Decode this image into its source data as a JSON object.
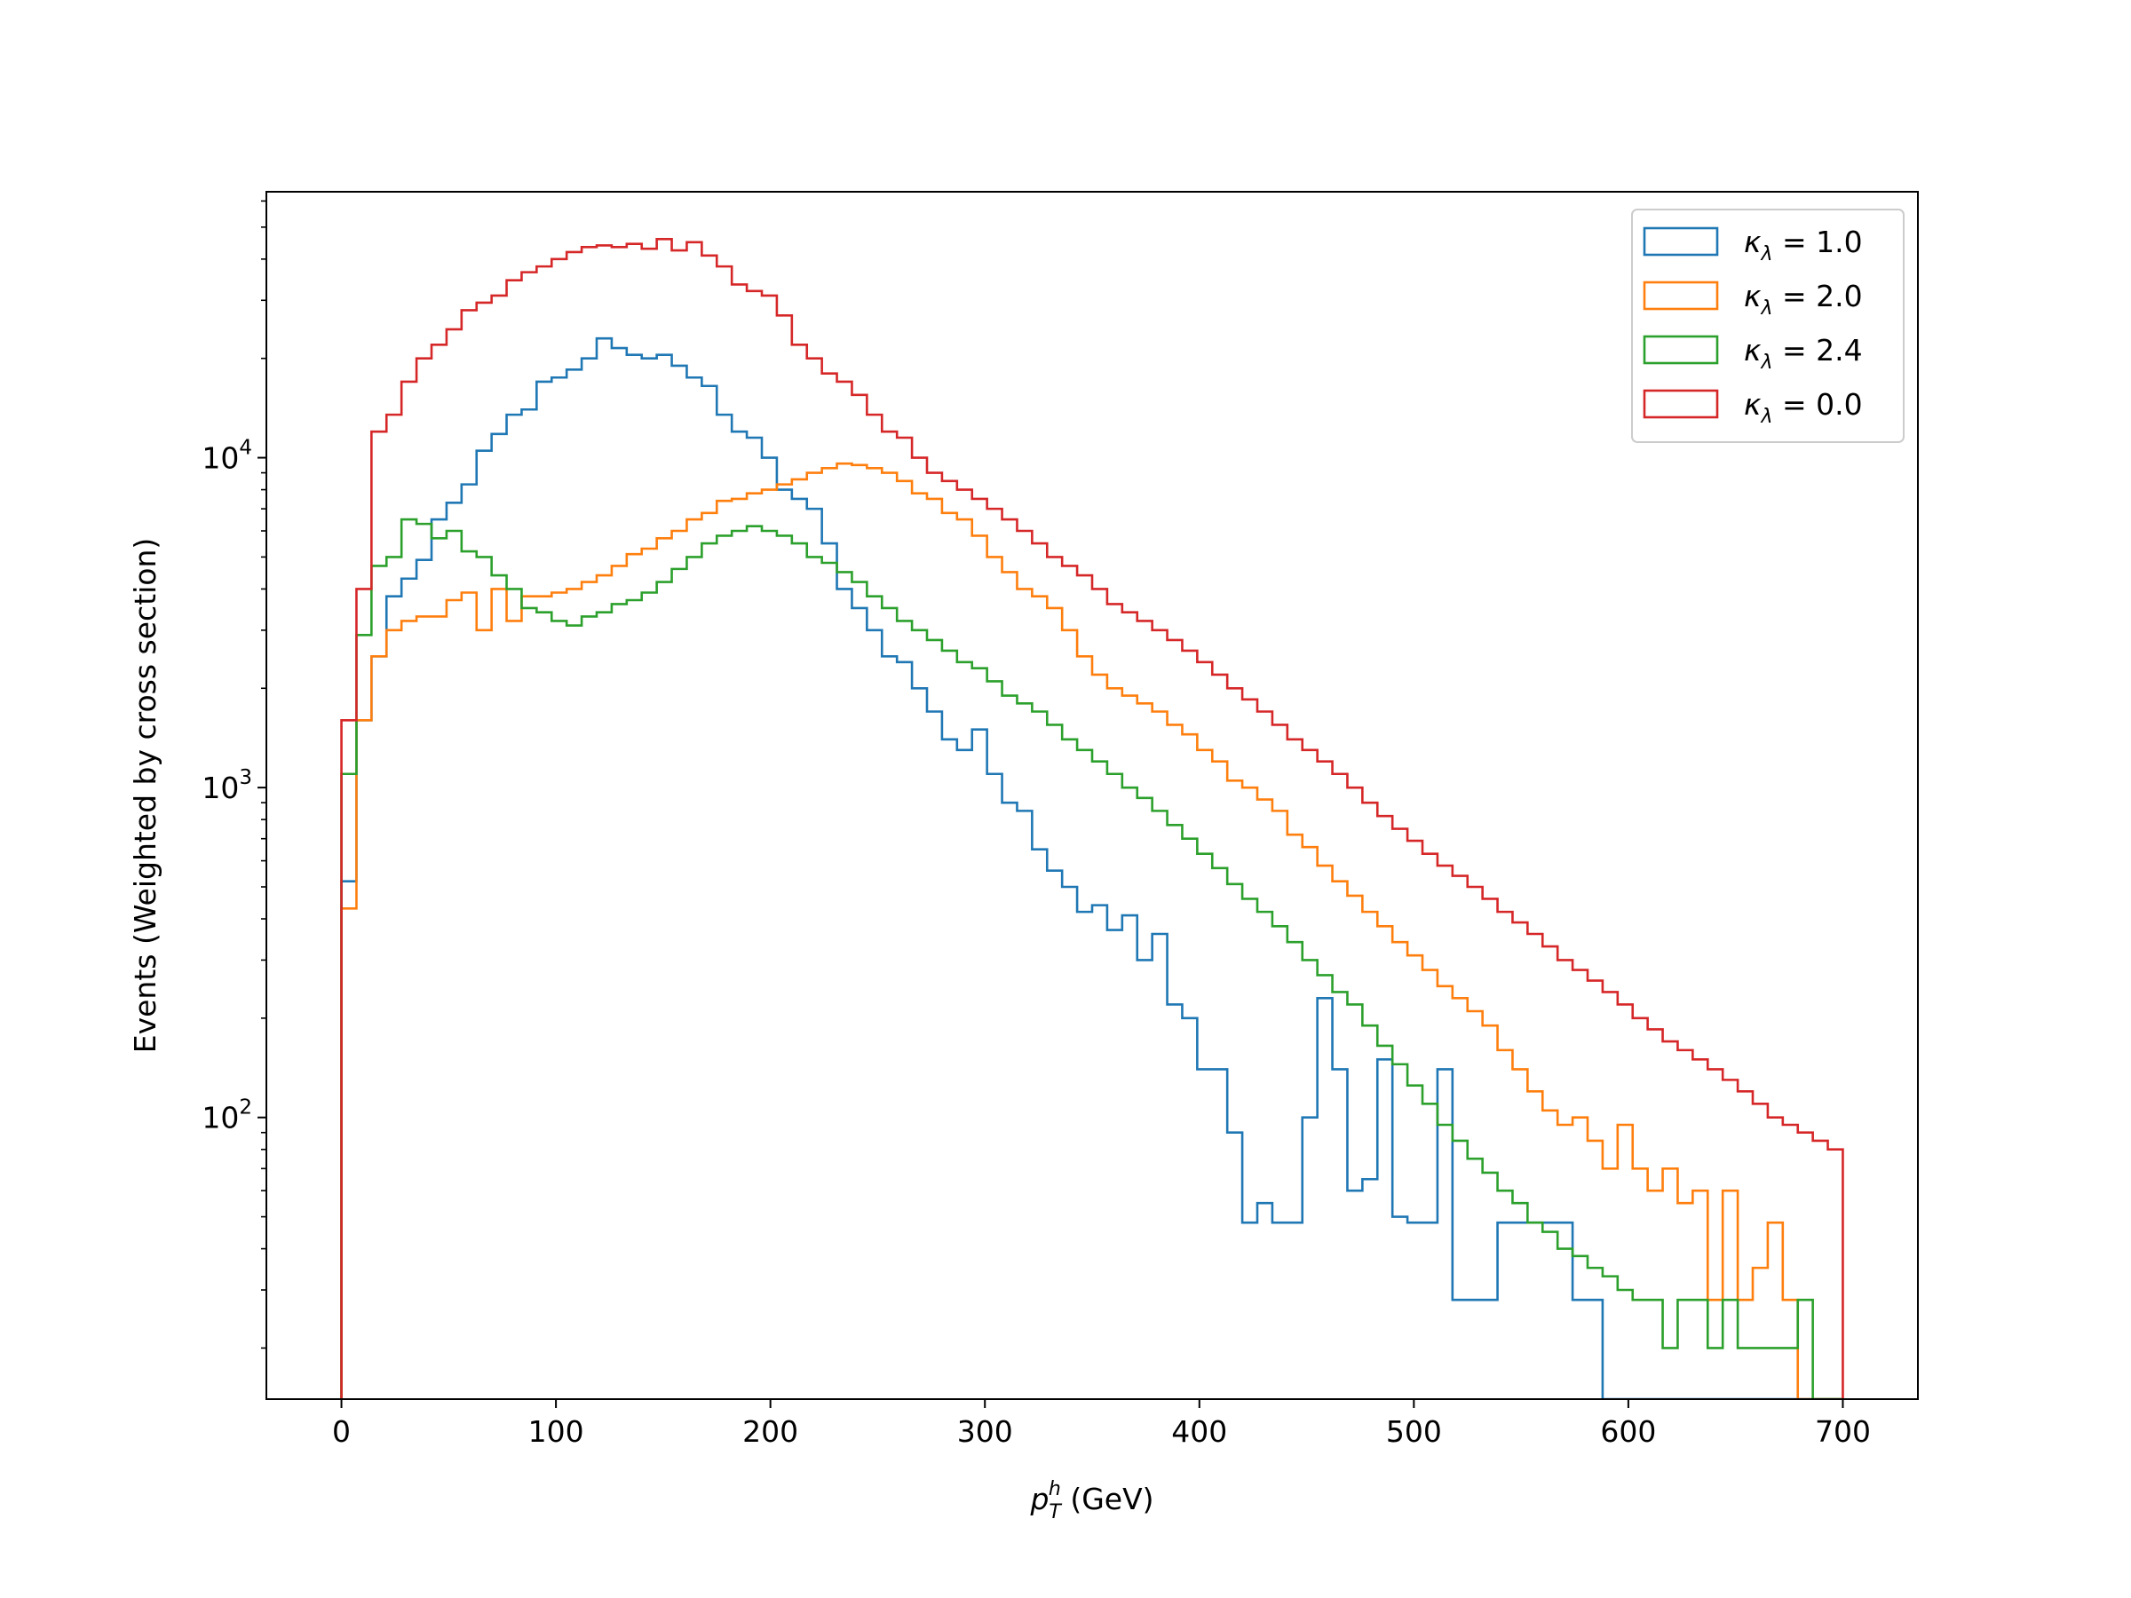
{
  "chart_data": {
    "type": "histogram",
    "xlabel": "p_T^h (GeV)",
    "xlabel_parts": {
      "base": "p",
      "sub": "T",
      "sup": "h",
      "rest": " (GeV)"
    },
    "ylabel": "Events (Weighted by cross section)",
    "yscale": "log",
    "xlim": [
      -35,
      735
    ],
    "ylim": [
      14,
      64000
    ],
    "bin_width": 7,
    "x_ticks": [
      0,
      100,
      200,
      300,
      400,
      500,
      600,
      700
    ],
    "x_tick_labels": [
      "0",
      "100",
      "200",
      "300",
      "400",
      "500",
      "600",
      "700"
    ],
    "y_ticks": [
      100,
      1000,
      10000
    ],
    "y_tick_labels": [
      {
        "base": "10",
        "exp": "2"
      },
      {
        "base": "10",
        "exp": "3"
      },
      {
        "base": "10",
        "exp": "4"
      }
    ],
    "legend_position": "upper right",
    "grid": false,
    "series": [
      {
        "name": "κ_λ = 1.0",
        "legend": {
          "kappa": "κ",
          "sub": "λ",
          "rest": " = 1.0"
        },
        "color": "#1f77b4",
        "values": [
          520,
          1600,
          2500,
          3800,
          4300,
          4900,
          6500,
          7300,
          8300,
          10500,
          11800,
          13500,
          14000,
          17000,
          17500,
          18500,
          20000,
          23000,
          21500,
          20500,
          20000,
          20500,
          19000,
          17500,
          16500,
          13500,
          12000,
          11500,
          10000,
          8000,
          7500,
          7000,
          5500,
          4000,
          3500,
          3000,
          2500,
          2400,
          2000,
          1700,
          1400,
          1300,
          1500,
          1100,
          900,
          850,
          650,
          560,
          500,
          420,
          440,
          370,
          410,
          300,
          360,
          220,
          200,
          140,
          140,
          90,
          48,
          55,
          48,
          48,
          100,
          230,
          140,
          60,
          65,
          150,
          50,
          48,
          48,
          140,
          28,
          28,
          28,
          48,
          48,
          48,
          48,
          48,
          28,
          28,
          14,
          14,
          14,
          14,
          14,
          14,
          14,
          14,
          14,
          14,
          14,
          14,
          14,
          14,
          14,
          14
        ]
      },
      {
        "name": "κ_λ = 2.0",
        "legend": {
          "kappa": "κ",
          "sub": "λ",
          "rest": " = 2.0"
        },
        "color": "#ff7f0e",
        "values": [
          430,
          1600,
          2500,
          3000,
          3200,
          3300,
          3300,
          3700,
          3900,
          3000,
          4000,
          3200,
          3800,
          3800,
          3900,
          4000,
          4200,
          4400,
          4700,
          5100,
          5300,
          5700,
          6000,
          6500,
          6800,
          7400,
          7500,
          7800,
          8000,
          8300,
          8600,
          9000,
          9300,
          9600,
          9500,
          9300,
          9000,
          8500,
          7800,
          7500,
          6800,
          6500,
          5800,
          5000,
          4500,
          4000,
          3800,
          3500,
          3000,
          2500,
          2200,
          2000,
          1900,
          1800,
          1700,
          1550,
          1450,
          1300,
          1200,
          1050,
          1000,
          920,
          850,
          720,
          660,
          580,
          520,
          470,
          420,
          380,
          340,
          310,
          280,
          250,
          230,
          210,
          190,
          160,
          140,
          120,
          105,
          95,
          100,
          85,
          70,
          95,
          70,
          60,
          70,
          55,
          60,
          28,
          60,
          28,
          35,
          48,
          28,
          14,
          14,
          14
        ]
      },
      {
        "name": "κ_λ = 2.4",
        "legend": {
          "kappa": "κ",
          "sub": "λ",
          "rest": " = 2.4"
        },
        "color": "#2ca02c",
        "values": [
          1100,
          2900,
          4700,
          5000,
          6500,
          6300,
          5700,
          6000,
          5200,
          5000,
          4400,
          4000,
          3500,
          3400,
          3200,
          3100,
          3300,
          3400,
          3600,
          3700,
          3900,
          4200,
          4600,
          5000,
          5500,
          5800,
          6000,
          6200,
          6000,
          5800,
          5500,
          5000,
          4800,
          4500,
          4200,
          3800,
          3500,
          3200,
          3000,
          2800,
          2600,
          2400,
          2300,
          2100,
          1900,
          1800,
          1700,
          1550,
          1400,
          1300,
          1200,
          1100,
          1000,
          930,
          850,
          770,
          700,
          630,
          570,
          510,
          460,
          420,
          380,
          340,
          300,
          270,
          240,
          220,
          190,
          165,
          145,
          125,
          110,
          95,
          85,
          75,
          68,
          60,
          55,
          48,
          45,
          40,
          38,
          35,
          33,
          30,
          28,
          28,
          20,
          28,
          28,
          20,
          28,
          20,
          20,
          20,
          20,
          28,
          14,
          14
        ]
      },
      {
        "name": "κ_λ = 0.0",
        "legend": {
          "kappa": "κ",
          "sub": "λ",
          "rest": " = 0.0"
        },
        "color": "#d62728",
        "values": [
          1600,
          4000,
          12000,
          13500,
          17000,
          20000,
          22000,
          24500,
          28000,
          29500,
          31000,
          34500,
          36500,
          38000,
          40000,
          42000,
          43500,
          44000,
          43500,
          44500,
          43000,
          46000,
          42500,
          45000,
          41000,
          38000,
          33500,
          32000,
          31000,
          27000,
          22000,
          20000,
          18000,
          17000,
          15500,
          13500,
          12000,
          11500,
          10000,
          9000,
          8500,
          8000,
          7500,
          7000,
          6500,
          6000,
          5500,
          5000,
          4700,
          4400,
          4000,
          3600,
          3400,
          3200,
          3000,
          2800,
          2600,
          2400,
          2200,
          2000,
          1850,
          1700,
          1550,
          1400,
          1300,
          1200,
          1100,
          1000,
          900,
          820,
          750,
          690,
          630,
          580,
          540,
          500,
          460,
          420,
          390,
          360,
          330,
          300,
          280,
          260,
          240,
          220,
          200,
          185,
          170,
          160,
          150,
          140,
          130,
          120,
          110,
          100,
          95,
          90,
          85,
          80
        ]
      }
    ]
  }
}
